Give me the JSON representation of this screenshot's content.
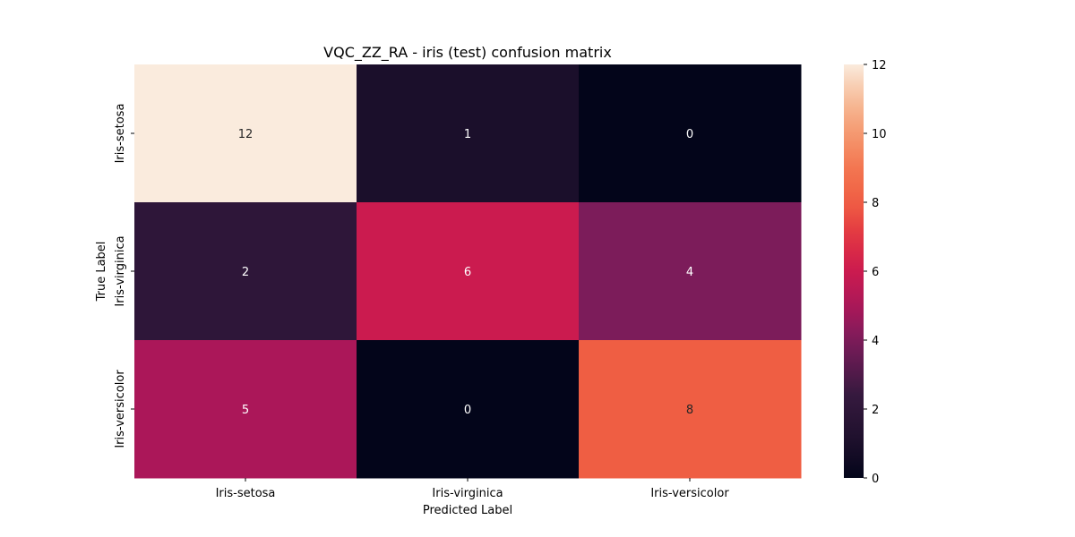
{
  "chart_data": {
    "type": "heatmap",
    "title": "VQC_ZZ_RA - iris (test) confusion matrix",
    "xlabel": "Predicted Label",
    "ylabel": "True Label",
    "x_categories": [
      "Iris-setosa",
      "Iris-virginica",
      "Iris-versicolor"
    ],
    "y_categories": [
      "Iris-setosa",
      "Iris-virginica",
      "Iris-versicolor"
    ],
    "values": [
      [
        12,
        1,
        0
      ],
      [
        2,
        6,
        4
      ],
      [
        5,
        0,
        8
      ]
    ],
    "colorbar": {
      "range": [
        0,
        12
      ],
      "ticks": [
        "0",
        "2",
        "4",
        "6",
        "8",
        "10",
        "12"
      ]
    },
    "colormap": "rocket"
  }
}
